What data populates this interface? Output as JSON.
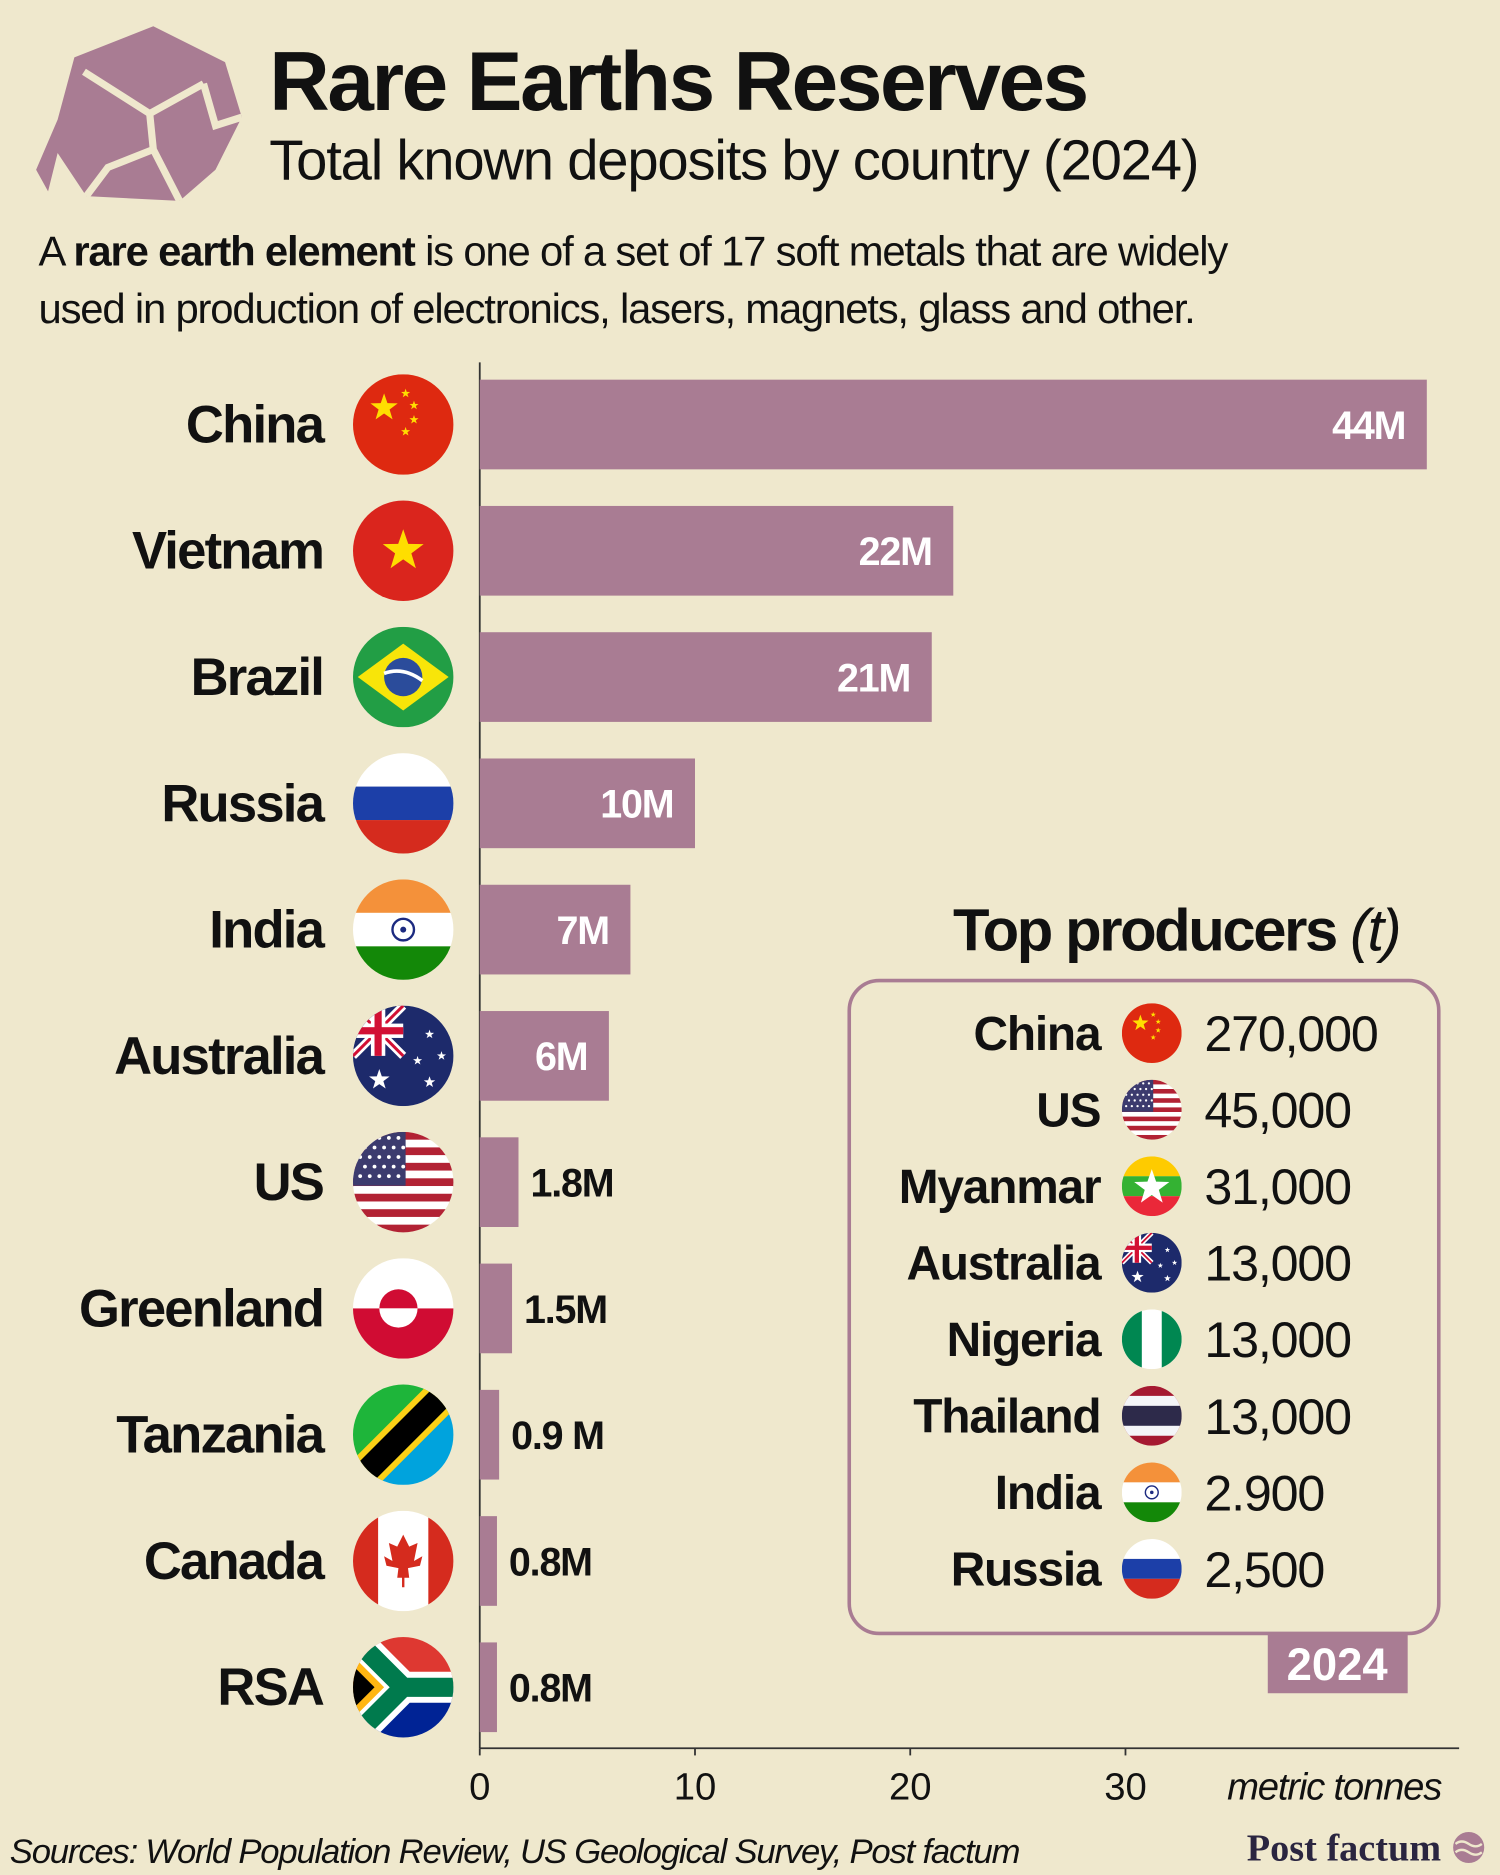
{
  "chart_data": {
    "type": "bar",
    "orientation": "horizontal",
    "title": "Rare Earths Reserves",
    "subtitle": "Total known deposits by country (2024)",
    "description": {
      "line1": [
        "A ",
        "rare earth element",
        " is one of a set of 17 soft metals that are widely"
      ],
      "line2": "used in production of electronics, lasers, magnets, glass and other."
    },
    "categories": [
      "China",
      "Vietnam",
      "Brazil",
      "Russia",
      "India",
      "Australia",
      "US",
      "Greenland",
      "Tanzania",
      "Canada",
      "RSA"
    ],
    "values": [
      44,
      22,
      21,
      10,
      7,
      6,
      1.8,
      1.5,
      0.9,
      0.8,
      0.8
    ],
    "value_labels": [
      "44M",
      "22M",
      "21M",
      "10M",
      "7M",
      "6M",
      "1.8M",
      "1.5M",
      "0.9 M",
      "0.8M",
      "0.8M"
    ],
    "color": "#a97c93",
    "xlim": [
      0,
      45.5
    ],
    "xticks": [
      0,
      10,
      20,
      30
    ],
    "xlabel": "metric tonnes"
  },
  "producers": {
    "title": "Top producers",
    "unit": "(t)",
    "rows": [
      {
        "country": "China",
        "value": "270,000"
      },
      {
        "country": "US",
        "value": "45,000"
      },
      {
        "country": "Myanmar",
        "value": "31,000"
      },
      {
        "country": "Australia",
        "value": "13,000"
      },
      {
        "country": "Nigeria",
        "value": "13,000"
      },
      {
        "country": "Thailand",
        "value": "13,000"
      },
      {
        "country": "India",
        "value": "2.900"
      },
      {
        "country": "Russia",
        "value": "2,500"
      }
    ],
    "year": "2024"
  },
  "footer": {
    "sources": "Sources: World Population Review, US Geological Survey, Post factum",
    "brand": "Post factum"
  }
}
